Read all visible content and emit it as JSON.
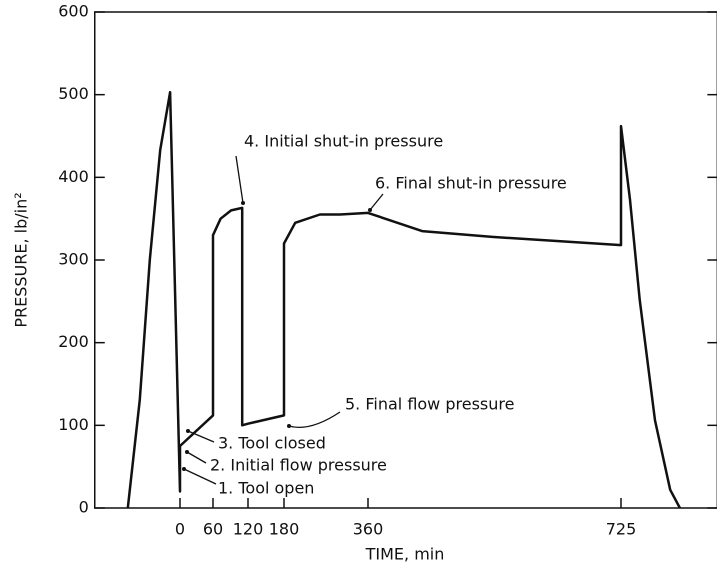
{
  "chart_data": {
    "type": "line",
    "x_label": "TIME, min",
    "y_label": "PRESSURE, lb/in²",
    "xlim": [
      -155,
      864
    ],
    "xticks": [
      0,
      60,
      120,
      180,
      360,
      725
    ],
    "ylim": [
      0,
      600
    ],
    "yticks": [
      0,
      100,
      200,
      300,
      400,
      500,
      600
    ],
    "series": [
      {
        "color": "#111111",
        "x": [
          -95,
          -73,
          -55,
          -36,
          -18,
          0,
          0,
          60,
          60,
          73,
          91,
          110,
          110,
          120,
          180,
          180,
          204,
          257,
          300,
          360,
          438,
          539,
          725,
          725,
          738,
          752,
          774,
          796,
          810
        ],
        "values": [
          0,
          131,
          300,
          433,
          503,
          20,
          75,
          112,
          330,
          350,
          360,
          363,
          100,
          102,
          112,
          320,
          345,
          355,
          355,
          357,
          335,
          328,
          318,
          462,
          373,
          252,
          106,
          22,
          0
        ]
      }
    ],
    "annotations": [
      "4. Initial shut-in pressure",
      "6. Final shut-in pressure",
      "5. Final flow pressure",
      "3. Tool closed",
      "2. Initial flow pressure",
      "1. Tool open"
    ]
  }
}
